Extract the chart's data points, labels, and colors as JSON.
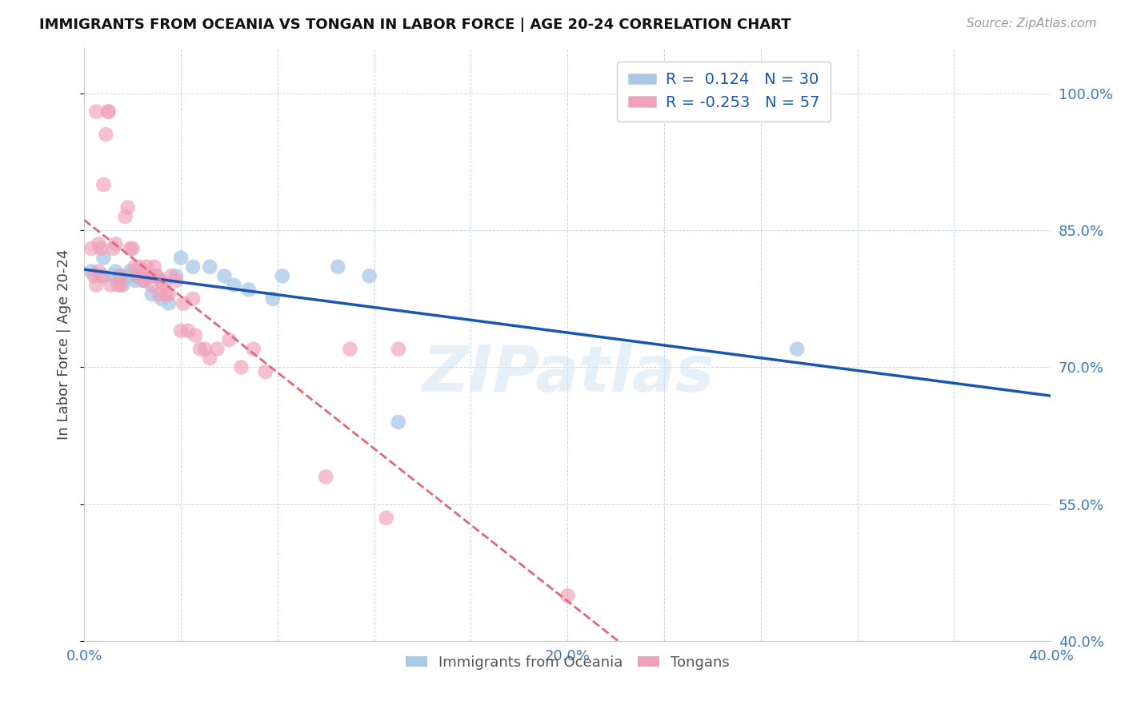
{
  "title": "IMMIGRANTS FROM OCEANIA VS TONGAN IN LABOR FORCE | AGE 20-24 CORRELATION CHART",
  "source_text": "Source: ZipAtlas.com",
  "ylabel": "In Labor Force | Age 20-24",
  "xlim": [
    0.0,
    0.4
  ],
  "ylim": [
    0.4,
    1.05
  ],
  "ytick_labels": [
    "40.0%",
    "55.0%",
    "70.0%",
    "85.0%",
    "100.0%"
  ],
  "ytick_values": [
    0.4,
    0.55,
    0.7,
    0.85,
    1.0
  ],
  "xtick_values": [
    0.0,
    0.04,
    0.08,
    0.12,
    0.16,
    0.2,
    0.24,
    0.28,
    0.32,
    0.36,
    0.4
  ],
  "xtick_labels": [
    "0.0%",
    "",
    "",
    "",
    "",
    "20.0%",
    "",
    "",
    "",
    "",
    "40.0%"
  ],
  "legend_label1": "Immigrants from Oceania",
  "legend_label2": "Tongans",
  "R_blue": 0.124,
  "N_blue": 30,
  "R_pink": -0.253,
  "N_pink": 57,
  "blue_color": "#a8c8e8",
  "pink_color": "#f0a0b8",
  "blue_line_color": "#1a56b0",
  "pink_line_color": "#e06878",
  "watermark": "ZIPatlas",
  "blue_points_x": [
    0.003,
    0.008,
    0.008,
    0.012,
    0.013,
    0.015,
    0.016,
    0.018,
    0.019,
    0.021,
    0.022,
    0.024,
    0.025,
    0.028,
    0.03,
    0.032,
    0.035,
    0.038,
    0.04,
    0.045,
    0.052,
    0.058,
    0.062,
    0.068,
    0.078,
    0.082,
    0.105,
    0.118,
    0.13,
    0.295
  ],
  "blue_points_y": [
    0.805,
    0.8,
    0.82,
    0.8,
    0.805,
    0.8,
    0.79,
    0.8,
    0.805,
    0.795,
    0.8,
    0.795,
    0.795,
    0.78,
    0.8,
    0.775,
    0.77,
    0.8,
    0.82,
    0.81,
    0.81,
    0.8,
    0.79,
    0.785,
    0.775,
    0.8,
    0.81,
    0.8,
    0.64,
    0.72
  ],
  "pink_points_x": [
    0.003,
    0.004,
    0.005,
    0.005,
    0.006,
    0.006,
    0.007,
    0.007,
    0.008,
    0.009,
    0.01,
    0.01,
    0.011,
    0.012,
    0.013,
    0.014,
    0.015,
    0.015,
    0.017,
    0.018,
    0.019,
    0.02,
    0.021,
    0.022,
    0.023,
    0.024,
    0.025,
    0.026,
    0.027,
    0.028,
    0.029,
    0.03,
    0.031,
    0.032,
    0.033,
    0.034,
    0.035,
    0.036,
    0.038,
    0.04,
    0.041,
    0.043,
    0.045,
    0.046,
    0.048,
    0.05,
    0.052,
    0.055,
    0.06,
    0.065,
    0.07,
    0.075,
    0.1,
    0.11,
    0.125,
    0.13,
    0.2
  ],
  "pink_points_y": [
    0.83,
    0.8,
    0.79,
    0.98,
    0.805,
    0.835,
    0.8,
    0.83,
    0.9,
    0.955,
    0.98,
    0.98,
    0.79,
    0.83,
    0.835,
    0.79,
    0.8,
    0.79,
    0.865,
    0.875,
    0.83,
    0.83,
    0.81,
    0.8,
    0.81,
    0.8,
    0.795,
    0.81,
    0.8,
    0.79,
    0.81,
    0.8,
    0.78,
    0.795,
    0.79,
    0.78,
    0.78,
    0.8,
    0.795,
    0.74,
    0.77,
    0.74,
    0.775,
    0.735,
    0.72,
    0.72,
    0.71,
    0.72,
    0.73,
    0.7,
    0.72,
    0.695,
    0.58,
    0.72,
    0.535,
    0.72,
    0.45
  ]
}
